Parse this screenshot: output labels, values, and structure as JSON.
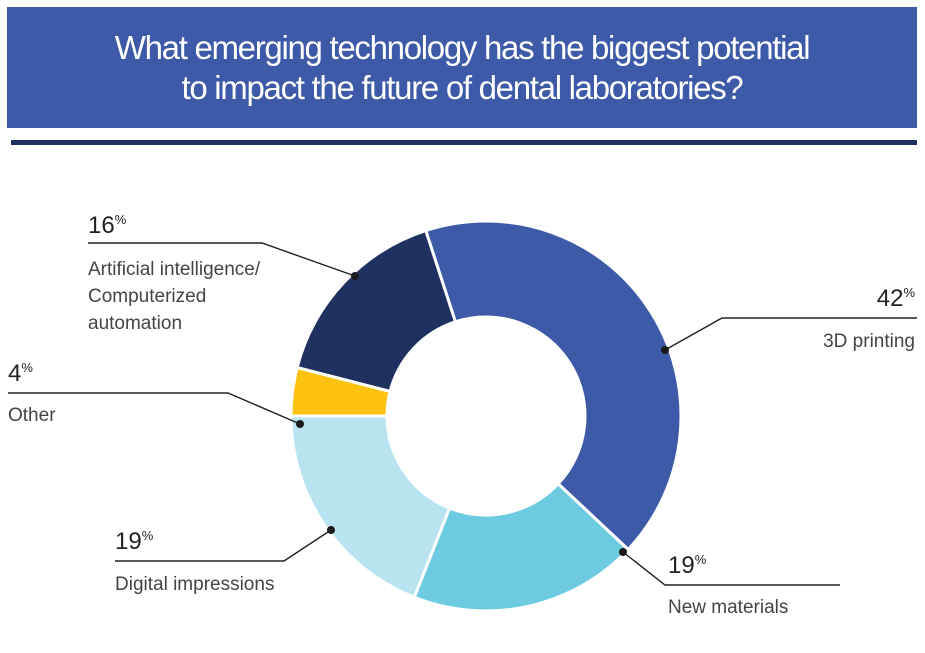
{
  "title": {
    "line1": "What emerging technology has the biggest potential",
    "line2": "to impact the future of dental laboratories?"
  },
  "chart_data": {
    "type": "pie",
    "donut": true,
    "percent_sign": "%",
    "slices": [
      {
        "label_lines": [
          "3D printing"
        ],
        "value": 42,
        "value_text": "42",
        "color": "#3d5aa8"
      },
      {
        "label_lines": [
          "New materials"
        ],
        "value": 19,
        "value_text": "19",
        "color": "#6ccbe0"
      },
      {
        "label_lines": [
          "Digital impressions"
        ],
        "value": 19,
        "value_text": "19",
        "color": "#b8e3f0"
      },
      {
        "label_lines": [
          "Other"
        ],
        "value": 4,
        "value_text": "4",
        "color": "#fdc20f"
      },
      {
        "label_lines": [
          "Artificial intelligence/",
          "Computerized",
          "automation"
        ],
        "value": 16,
        "value_text": "16",
        "color": "#1e3160"
      }
    ]
  }
}
